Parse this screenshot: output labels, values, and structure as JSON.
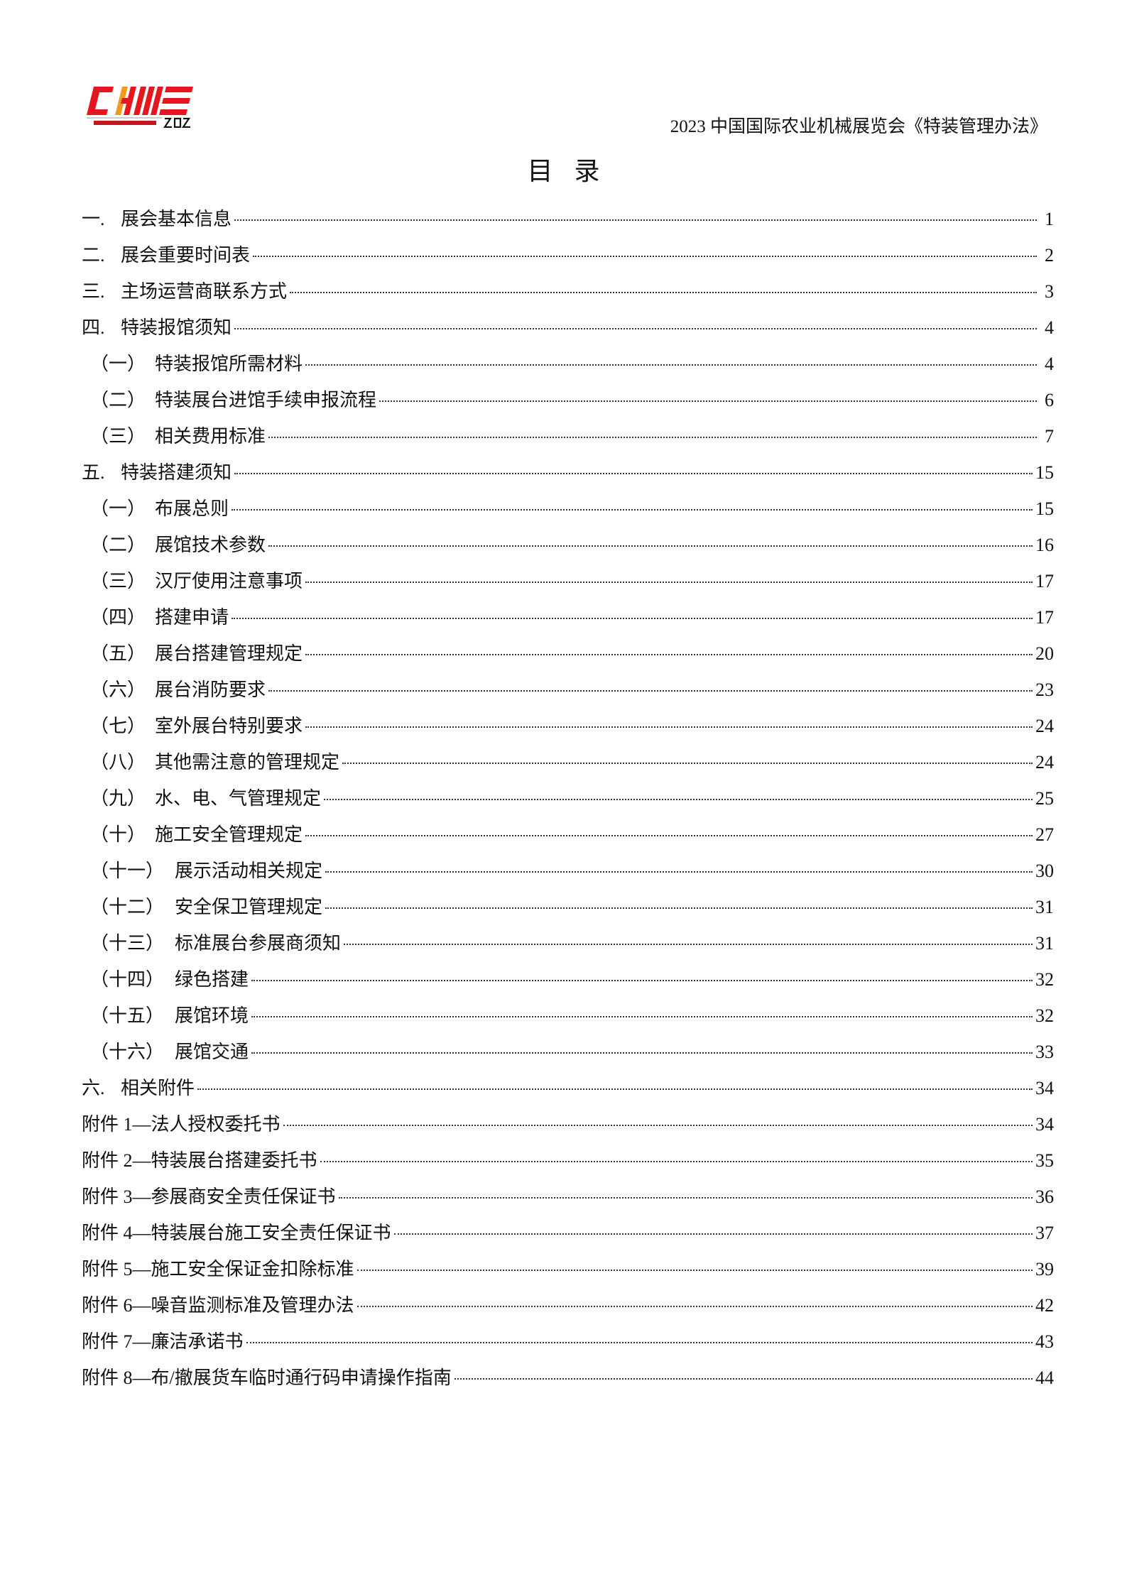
{
  "header": {
    "title": "2023 中国国际农业机械展览会《特装管理办法》",
    "logo_text": "CIAME 2023 中国国际农业机械展览会",
    "colors": {
      "logo_red": "#e3171d",
      "logo_orange": "#f29a1f"
    }
  },
  "doc_title": "目录",
  "toc": [
    {
      "level": 1,
      "num": "一.",
      "title": "展会基本信息",
      "page": "1"
    },
    {
      "level": 1,
      "num": "二.",
      "title": "展会重要时间表",
      "page": "2"
    },
    {
      "level": 1,
      "num": "三.",
      "title": "主场运营商联系方式",
      "page": "3"
    },
    {
      "level": 1,
      "num": "四.",
      "title": "特装报馆须知",
      "page": "4"
    },
    {
      "level": 2,
      "num": "（一）",
      "title": "特装报馆所需材料",
      "page": "4"
    },
    {
      "level": 2,
      "num": "（二）",
      "title": "特装展台进馆手续申报流程",
      "page": "6"
    },
    {
      "level": 2,
      "num": "（三）",
      "title": "相关费用标准",
      "page": "7"
    },
    {
      "level": 1,
      "num": "五.",
      "title": "特装搭建须知",
      "page": "15"
    },
    {
      "level": 2,
      "num": "（一）",
      "title": "布展总则",
      "page": "15"
    },
    {
      "level": 2,
      "num": "（二）",
      "title": "展馆技术参数",
      "page": "16"
    },
    {
      "level": 2,
      "num": "（三）",
      "title": "汉厅使用注意事项",
      "page": "17"
    },
    {
      "level": 2,
      "num": "（四）",
      "title": "搭建申请",
      "page": "17"
    },
    {
      "level": 2,
      "num": "（五）",
      "title": "展台搭建管理规定",
      "page": "20"
    },
    {
      "level": 2,
      "num": "（六）",
      "title": "展台消防要求",
      "page": "23"
    },
    {
      "level": 2,
      "num": "（七）",
      "title": "室外展台特别要求",
      "page": "24"
    },
    {
      "level": 2,
      "num": "（八）",
      "title": "其他需注意的管理规定",
      "page": "24"
    },
    {
      "level": 2,
      "num": "（九）",
      "title": "水、电、气管理规定",
      "page": "25"
    },
    {
      "level": 2,
      "num": "（十）",
      "title": "施工安全管理规定",
      "page": "27"
    },
    {
      "level": 3,
      "num": "（十一）",
      "title": "展示活动相关规定",
      "page": "30"
    },
    {
      "level": 3,
      "num": "（十二）",
      "title": "安全保卫管理规定",
      "page": "31"
    },
    {
      "level": 3,
      "num": "（十三）",
      "title": "标准展台参展商须知",
      "page": "31"
    },
    {
      "level": 3,
      "num": "（十四）",
      "title": "绿色搭建",
      "page": "32"
    },
    {
      "level": 3,
      "num": "（十五）",
      "title": "展馆环境",
      "page": "32"
    },
    {
      "level": 3,
      "num": "（十六）",
      "title": "展馆交通",
      "page": "33"
    },
    {
      "level": 1,
      "num": "六.",
      "title": "相关附件",
      "page": "34"
    },
    {
      "level": 0,
      "num": "",
      "title": "附件 1—法人授权委托书",
      "page": "34"
    },
    {
      "level": 0,
      "num": "",
      "title": "附件 2—特装展台搭建委托书",
      "page": "35"
    },
    {
      "level": 0,
      "num": "",
      "title": "附件 3—参展商安全责任保证书",
      "page": "36"
    },
    {
      "level": 0,
      "num": "",
      "title": "附件 4—特装展台施工安全责任保证书",
      "page": "37"
    },
    {
      "level": 0,
      "num": "",
      "title": "附件 5—施工安全保证金扣除标准",
      "page": "39"
    },
    {
      "level": 0,
      "num": "",
      "title": "附件 6—噪音监测标准及管理办法",
      "page": "42"
    },
    {
      "level": 0,
      "num": "",
      "title": "附件 7—廉洁承诺书",
      "page": "43"
    },
    {
      "level": 0,
      "num": "",
      "title": "附件 8—布/撤展货车临时通行码申请操作指南",
      "page": "44"
    }
  ]
}
